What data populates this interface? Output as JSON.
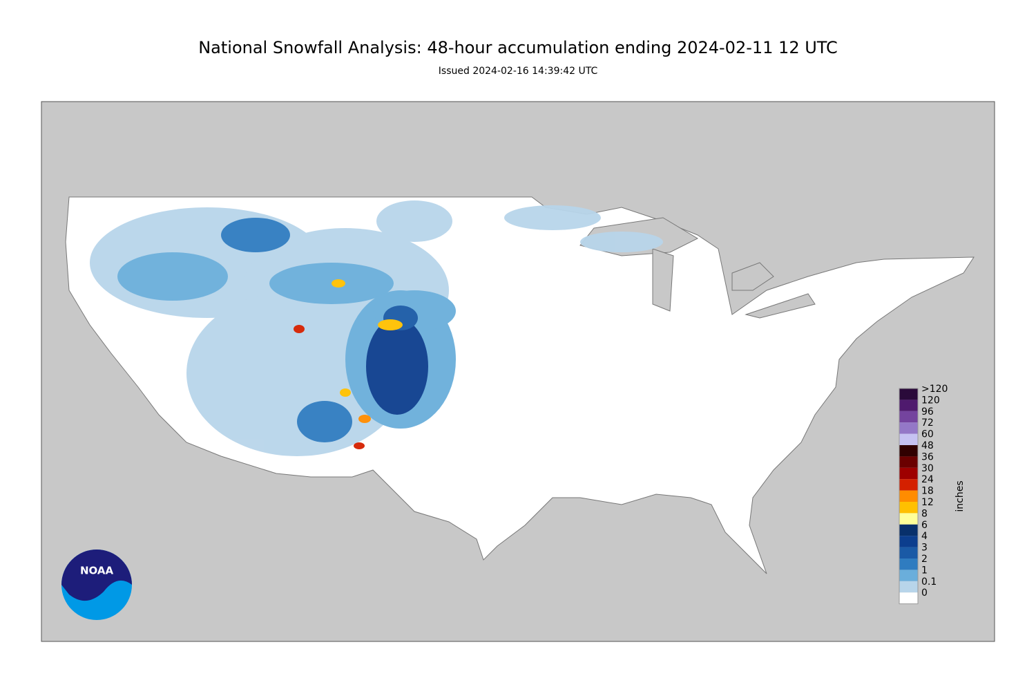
{
  "header": {
    "title": "National Snowfall Analysis: 48-hour accumulation ending 2024-02-11 12 UTC",
    "subtitle": "Issued 2024-02-16 14:39:42 UTC"
  },
  "legend": {
    "title": "inches",
    "items": [
      {
        "label": ">120",
        "color": "#2a0a3a"
      },
      {
        "label": "120",
        "color": "#4f1a6e"
      },
      {
        "label": "96",
        "color": "#74449e"
      },
      {
        "label": "72",
        "color": "#9478c7"
      },
      {
        "label": "60",
        "color": "#c6c2f2"
      },
      {
        "label": "48",
        "color": "#300000"
      },
      {
        "label": "36",
        "color": "#6a0000"
      },
      {
        "label": "30",
        "color": "#9e0000"
      },
      {
        "label": "24",
        "color": "#d42000"
      },
      {
        "label": "18",
        "color": "#ff8c00"
      },
      {
        "label": "12",
        "color": "#ffc000"
      },
      {
        "label": "8",
        "color": "#ffff99"
      },
      {
        "label": "6",
        "color": "#08306b"
      },
      {
        "label": "4",
        "color": "#0c3e8e"
      },
      {
        "label": "3",
        "color": "#1a5aa6"
      },
      {
        "label": "2",
        "color": "#2f7cc0"
      },
      {
        "label": "1",
        "color": "#6aaedb"
      },
      {
        "label": "0.1",
        "color": "#b8d5ea"
      },
      {
        "label": "0",
        "color": "#ffffff"
      }
    ]
  },
  "logo": {
    "text": "NOAA"
  }
}
